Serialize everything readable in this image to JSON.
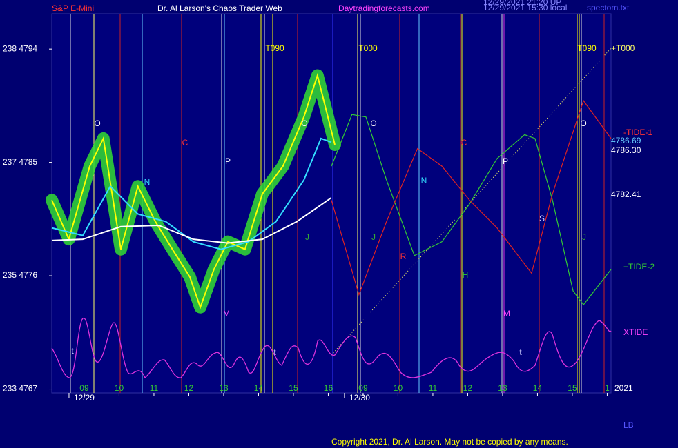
{
  "chart_data": {
    "type": "line",
    "header": [
      "S&P E-Mini",
      "Dr. Al Larson's Chaos Trader Web",
      "Daytradingforecasts.com",
      "12/29/2021 21:20 UP",
      "12/29/2021 15:30 local",
      "spectom.txt"
    ],
    "xlim": [
      -0.93,
      15.11
    ],
    "ylim": [
      4766.7,
      4796.8
    ],
    "yticks": [
      {
        "value": 4794,
        "label": "238 4794"
      },
      {
        "value": 4785,
        "label": "237 4785"
      },
      {
        "value": 4776,
        "label": "235 4776"
      },
      {
        "value": 4767,
        "label": "233 4767"
      }
    ],
    "xticks": [
      {
        "value": 0,
        "label": "09"
      },
      {
        "value": 1,
        "label": "10"
      },
      {
        "value": 2,
        "label": "11"
      },
      {
        "value": 3,
        "label": "12"
      },
      {
        "value": 4,
        "label": "13"
      },
      {
        "value": 5,
        "label": "14"
      },
      {
        "value": 6,
        "label": "15"
      },
      {
        "value": 7,
        "label": "16"
      },
      {
        "value": 8,
        "label": "09"
      },
      {
        "value": 9,
        "label": "10"
      },
      {
        "value": 10,
        "label": "11"
      },
      {
        "value": 11,
        "label": "12"
      },
      {
        "value": 12,
        "label": "13"
      },
      {
        "value": 13,
        "label": "14"
      },
      {
        "value": 14,
        "label": "15"
      },
      {
        "value": 15,
        "label": "1"
      }
    ],
    "date_ticks": [
      {
        "value": 0,
        "label": "12/29"
      },
      {
        "value": 7.9,
        "label": "12/30"
      }
    ],
    "series": [
      {
        "name": "price",
        "color": "#ffff00",
        "x": [
          -0.93,
          -0.44,
          0.16,
          0.55,
          1.05,
          1.54,
          2.04,
          2.53,
          3.03,
          3.33,
          3.72,
          4.12,
          4.61,
          5.11,
          5.7,
          6.3,
          6.69,
          6.89,
          7.19
        ],
        "values": [
          4782.0,
          4778.9,
          4784.7,
          4786.9,
          4778.1,
          4783.1,
          4780.3,
          4778.1,
          4775.9,
          4773.5,
          4776.5,
          4778.7,
          4778.1,
          4782.5,
          4784.7,
          4788.6,
          4791.9,
          4789.7,
          4786.4
        ]
      },
      {
        "name": "fast average",
        "color": "#33ddff",
        "x": [
          -0.93,
          -0.04,
          0.75,
          1.54,
          2.34,
          3.13,
          3.92,
          4.71,
          5.5,
          6.3,
          6.79,
          7.09
        ],
        "values": [
          4779.8,
          4779.2,
          4783.1,
          4780.9,
          4780.3,
          4778.7,
          4778.1,
          4778.7,
          4780.3,
          4783.6,
          4786.9,
          4786.6
        ]
      },
      {
        "name": "slow average",
        "color": "#ffffff",
        "x": [
          -0.93,
          -0.04,
          1.05,
          2.14,
          3.13,
          4.12,
          5.11,
          6.1,
          7.09
        ],
        "values": [
          4778.8,
          4778.9,
          4779.9,
          4780.0,
          4778.9,
          4778.6,
          4778.9,
          4780.3,
          4782.2
        ]
      },
      {
        "name": "+TIDE-2",
        "color": "#33cc33",
        "x": [
          7.09,
          7.68,
          8.08,
          8.67,
          9.47,
          10.26,
          11.05,
          11.84,
          12.63,
          12.93,
          13.43,
          14.02,
          14.32,
          15.11
        ],
        "values": [
          4784.7,
          4788.8,
          4788.6,
          4783.6,
          4777.6,
          4778.7,
          4781.7,
          4785.3,
          4787.2,
          4786.9,
          4782.0,
          4774.8,
          4773.7,
          4776.5
        ]
      },
      {
        "name": "-TIDE-1",
        "color": "#dd2222",
        "x": [
          7.09,
          7.88,
          8.67,
          9.56,
          10.26,
          11.05,
          11.84,
          12.83,
          13.43,
          14.32,
          15.11
        ],
        "values": [
          4782.0,
          4774.5,
          4780.3,
          4786.1,
          4784.7,
          4782.0,
          4779.8,
          4776.2,
          4782.5,
          4789.9,
          4786.9
        ]
      }
    ],
    "price_labels": [
      {
        "value": 4786.69,
        "label": "4786.69"
      },
      {
        "value": 4786.3,
        "label": "4786.30"
      },
      {
        "value": 4782.41,
        "label": "4782.41"
      }
    ],
    "curve_labels": [
      "+T000",
      "-TIDE-1",
      "+TIDE-2",
      "XTIDE",
      "2021",
      "LB"
    ],
    "chart_labels": [
      "O",
      "O",
      "O",
      "O",
      "C",
      "C",
      "P",
      "P",
      "N",
      "N",
      "R",
      "H",
      "M",
      "M",
      "S",
      "J",
      "J",
      "J",
      "t",
      "t",
      "t",
      "T090",
      "T000",
      "T090"
    ],
    "copyright": "Copyright 2021, Dr. Al Larson. May not be copied by any means."
  }
}
